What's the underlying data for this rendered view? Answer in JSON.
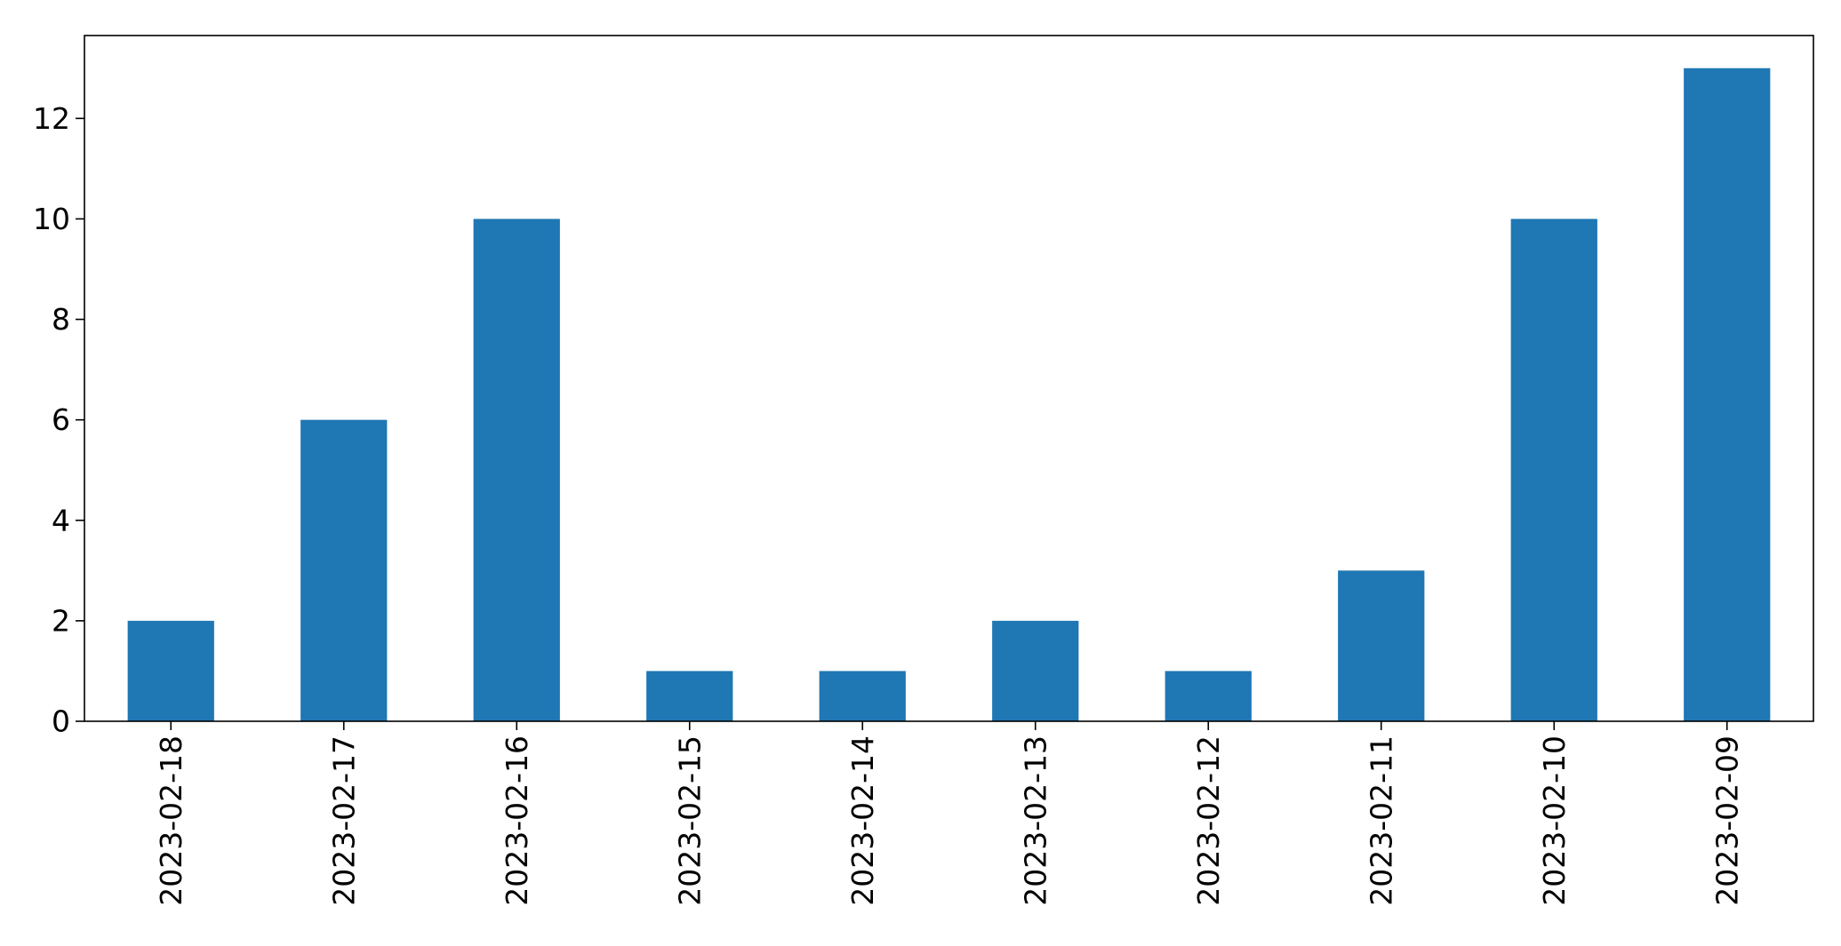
{
  "chart_data": {
    "type": "bar",
    "title": "",
    "xlabel": "",
    "ylabel": "",
    "categories": [
      "2023-02-18",
      "2023-02-17",
      "2023-02-16",
      "2023-02-15",
      "2023-02-14",
      "2023-02-13",
      "2023-02-12",
      "2023-02-11",
      "2023-02-10",
      "2023-02-09"
    ],
    "values": [
      2,
      6,
      10,
      1,
      1,
      2,
      1,
      3,
      10,
      13
    ],
    "ylim": [
      0,
      13.65
    ],
    "yticks": [
      0,
      2,
      4,
      6,
      8,
      10,
      12
    ],
    "grid": false,
    "legend": "none",
    "bar_color": "#1f77b4"
  }
}
